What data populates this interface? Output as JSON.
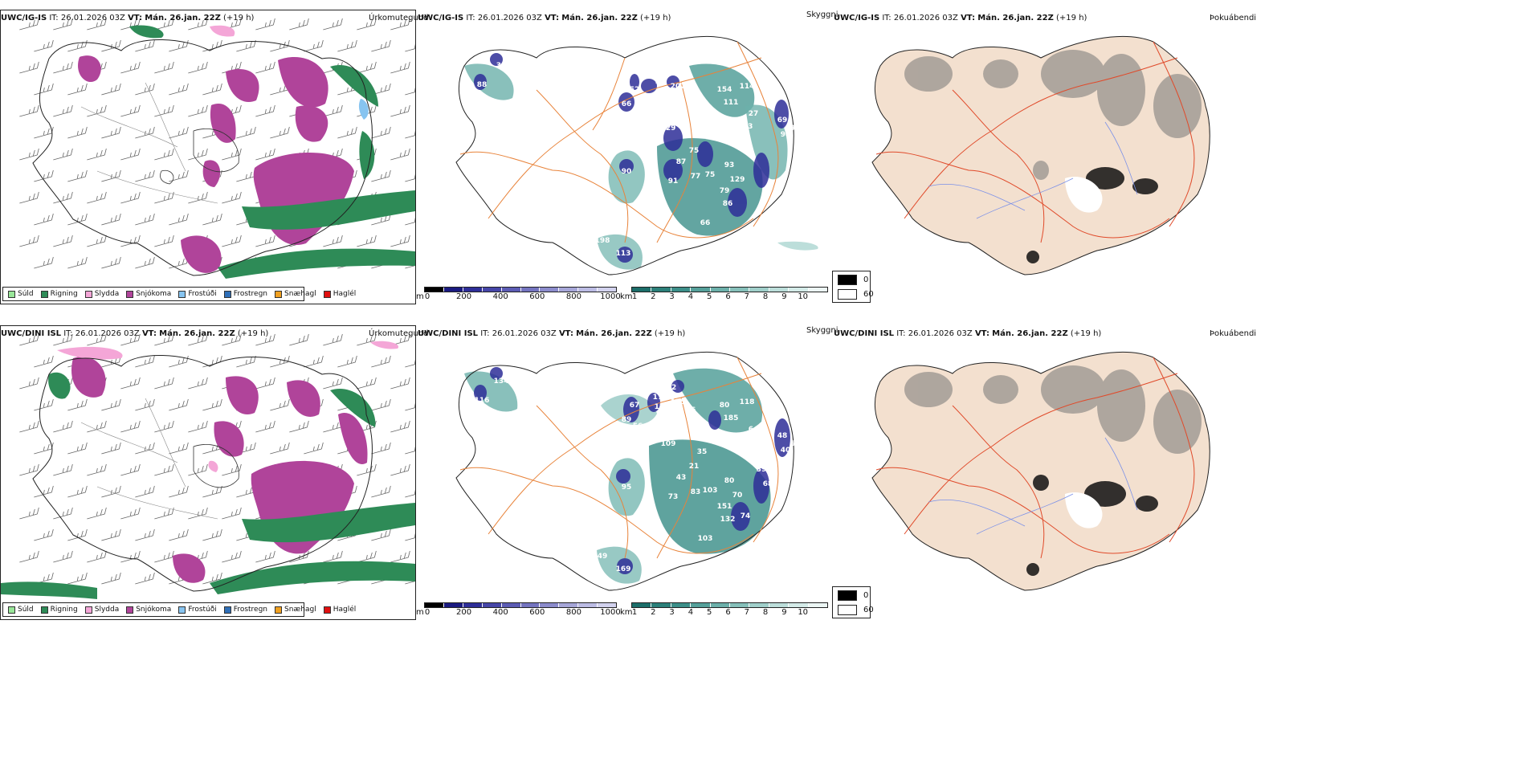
{
  "rows": [
    {
      "model": "UWC/IG-IS",
      "it_label": "IT:",
      "it_value": "26.01.2026 03Z",
      "vt_label": "VT:",
      "vt_value": "Mán. 26.jan. 22Z",
      "lead": "(+19 h)",
      "precip_labels": [
        "85",
        "100",
        "57",
        "57",
        "66",
        "52",
        "76",
        "96",
        "129",
        "48",
        "45",
        "154",
        "114",
        "111",
        "58",
        "27",
        "273",
        "69",
        "94",
        "97",
        "107",
        "75",
        "87",
        "90",
        "91",
        "77",
        "75",
        "93",
        "129",
        "79",
        "86",
        "66",
        "198",
        "113",
        "34",
        "88",
        "207",
        "61"
      ],
      "wind_glyph": "barb"
    },
    {
      "model": "UWC/DINI ISL",
      "it_label": "IT:",
      "it_value": "26.01.2026 03Z",
      "vt_label": "VT:",
      "vt_value": "Mán. 26.jan. 22Z",
      "lead": "(+19 h)",
      "precip_labels": [
        "62",
        "200",
        "178",
        "135",
        "89",
        "67",
        "56",
        "82",
        "109",
        "85",
        "76",
        "80",
        "118",
        "185",
        "90",
        "64",
        "51",
        "48",
        "40",
        "67",
        "35",
        "21",
        "43",
        "95",
        "73",
        "83",
        "103",
        "80",
        "70",
        "151",
        "132",
        "103",
        "49",
        "169",
        "134",
        "116",
        "115",
        "41",
        "39",
        "68",
        "74"
      ],
      "wind_glyph": "barb"
    }
  ],
  "panels": {
    "ptype_title": "Úrkomutegund",
    "vis_title": "Skyggni",
    "fog_title": "Þokuábendi"
  },
  "ptype_legend": [
    {
      "label": "Súld",
      "color": "#99e699"
    },
    {
      "label": "Rigning",
      "color": "#2e8b57"
    },
    {
      "label": "Slydda",
      "color": "#f4a6d7"
    },
    {
      "label": "Snjókoma",
      "color": "#b0449a"
    },
    {
      "label": "Frostúði",
      "color": "#87c4f0"
    },
    {
      "label": "Frostregn",
      "color": "#2f6fb8"
    },
    {
      "label": "Snæhagl",
      "color": "#f0a020"
    },
    {
      "label": "Haglél",
      "color": "#e01010"
    }
  ],
  "cbar_m": {
    "unit": "m",
    "ticks": [
      "0",
      "200",
      "400",
      "600",
      "800",
      "1000"
    ],
    "colors": [
      "#000000",
      "#1a1a80",
      "#2e2e98",
      "#4646a8",
      "#5c5cb4",
      "#7474c0",
      "#8c8ccc",
      "#a6a6d8",
      "#bcbce4",
      "#d2d2ee"
    ]
  },
  "cbar_km": {
    "unit": "km",
    "ticks": [
      "1",
      "2",
      "3",
      "4",
      "5",
      "6",
      "7",
      "8",
      "9",
      "10"
    ],
    "colors": [
      "#1c6e6a",
      "#2c807a",
      "#3c8f89",
      "#55a09a",
      "#6cb0aa",
      "#86c0ba",
      "#a0cfca",
      "#bcdeda",
      "#d4ebe8",
      "#ecf6f4"
    ]
  },
  "vis_legend": [
    {
      "label": "0",
      "color": "#000000"
    },
    {
      "label": "60",
      "color": "#ffffff"
    }
  ],
  "colors": {
    "snow": "#b0449a",
    "rain": "#2e8b57",
    "sleet": "#f4a6d7",
    "freezing_drizzle": "#87c4f0",
    "land_fog": "#f3e0cf",
    "roads": "#e8833a",
    "rivers": "#7a90e8",
    "fog_roads": "#e04a2a"
  }
}
